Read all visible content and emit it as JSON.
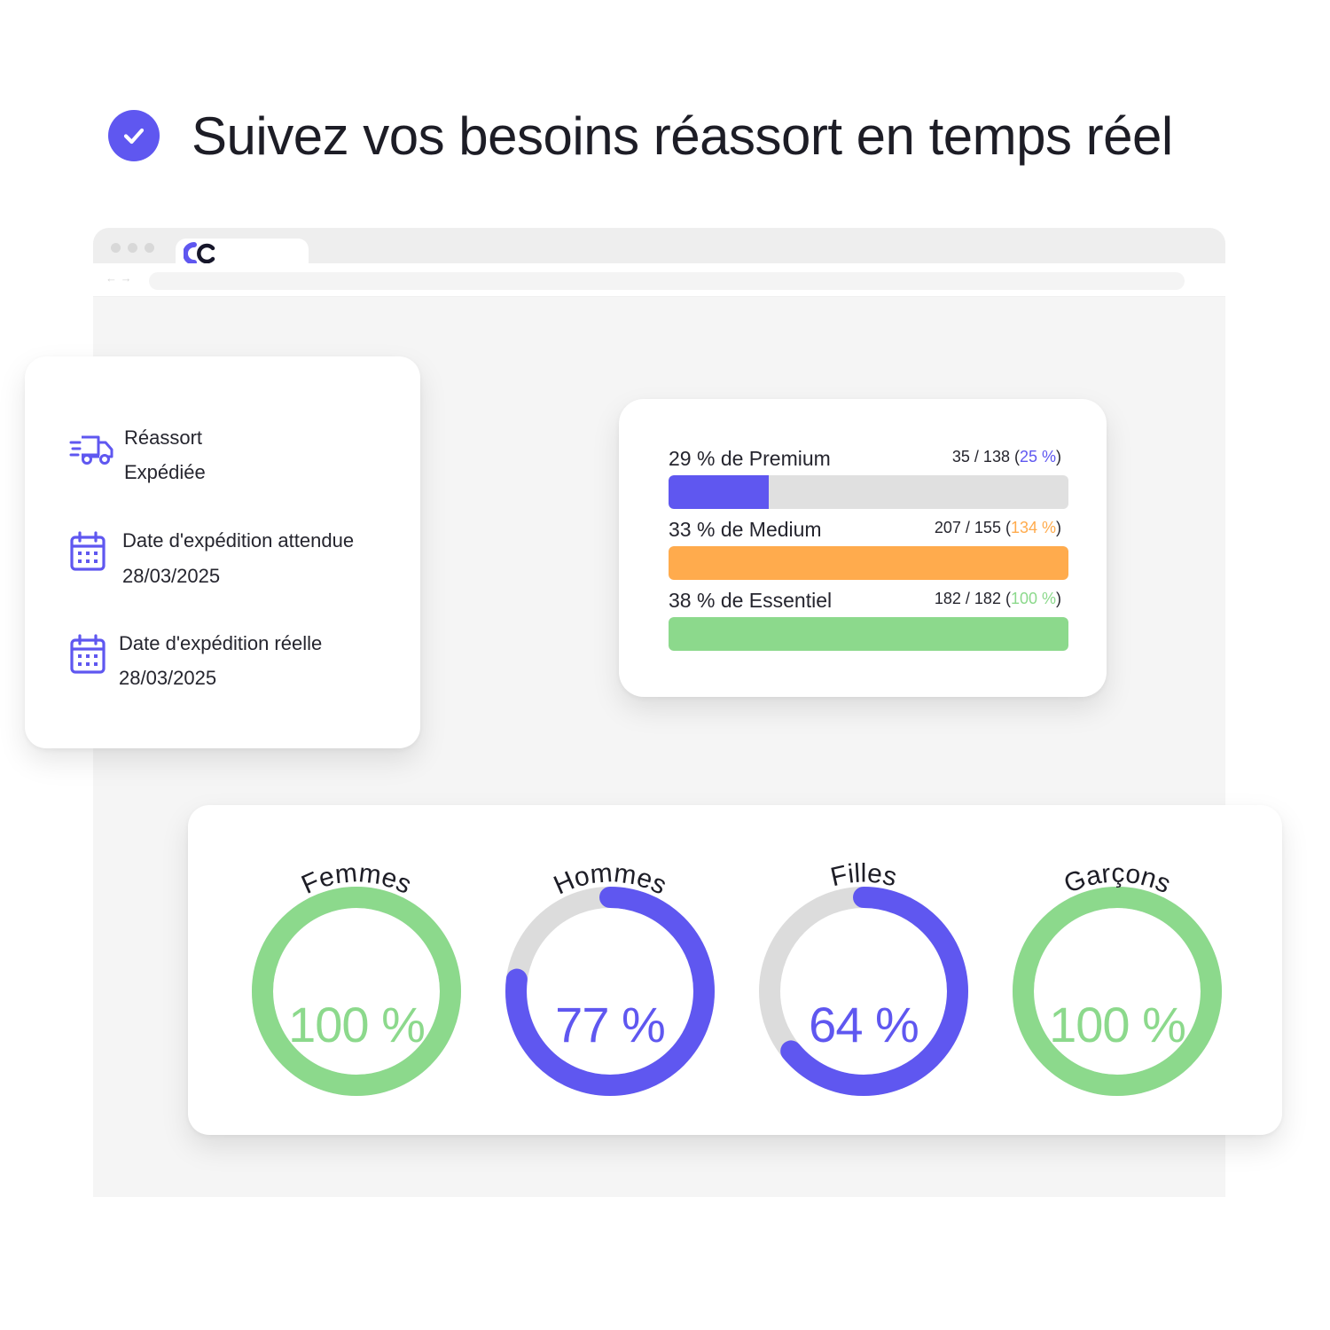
{
  "headline": "Suivez vos besoins réassort en temps réel",
  "colors": {
    "accent": "#5f57f0",
    "orange": "#ffab4d",
    "green": "#8cd98c",
    "track": "#e0e0e0",
    "donut_track": "#dcdcdc"
  },
  "browser": {
    "nav": "← →"
  },
  "status_card": {
    "items": [
      {
        "icon": "delivery-truck-icon",
        "title": "Réassort",
        "value": "Expédiée"
      },
      {
        "icon": "calendar-icon",
        "title": "Date d'expédition attendue",
        "value": "28/03/2025"
      },
      {
        "icon": "calendar-icon",
        "title": "Date d'expédition réelle",
        "value": "28/03/2025"
      }
    ]
  },
  "range_card": {
    "bars": [
      {
        "label": "29 % de Premium",
        "count": "35 / 138 (",
        "pct": "25 %",
        "close": ")",
        "progress": 0.25,
        "color": "#5f57f0"
      },
      {
        "label": "33 % de Medium",
        "count": "207 / 155 (",
        "pct": "134 %",
        "close": ")",
        "progress": 1.0,
        "color": "#ffab4d"
      },
      {
        "label": "38 % de Essentiel",
        "count": "182 / 182 (",
        "pct": "100 %",
        "close": ")",
        "progress": 1.0,
        "color": "#8cd98c"
      }
    ]
  },
  "segments_card": {
    "donuts": [
      {
        "label": "Femmes",
        "value_text": "100 %",
        "progress": 1.0,
        "color": "#8cd98c"
      },
      {
        "label": "Hommes",
        "value_text": "77 %",
        "progress": 0.77,
        "color": "#5f57f0"
      },
      {
        "label": "Filles",
        "value_text": "64 %",
        "progress": 0.64,
        "color": "#5f57f0"
      },
      {
        "label": "Garçons",
        "value_text": "100 %",
        "progress": 1.0,
        "color": "#8cd98c"
      }
    ]
  }
}
